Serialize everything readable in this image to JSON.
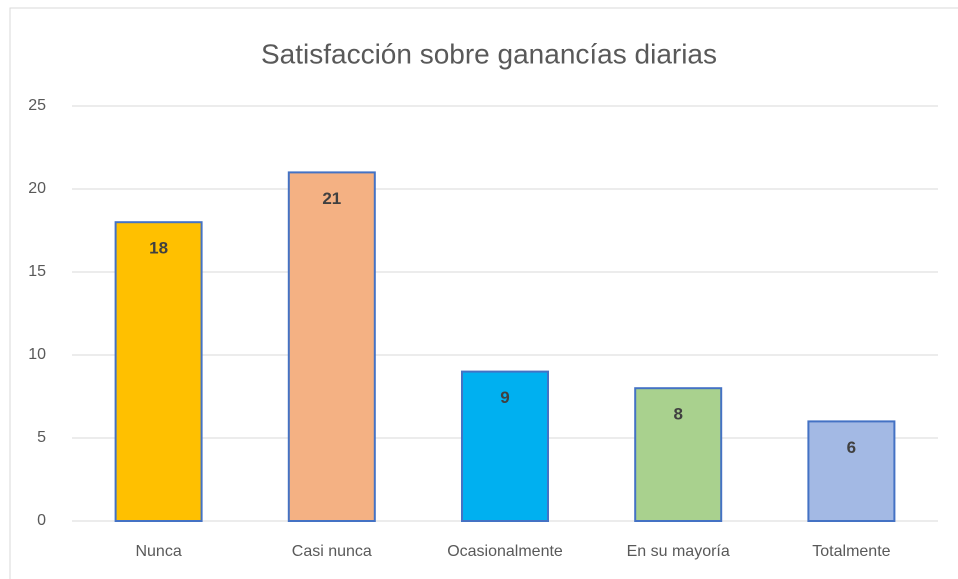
{
  "chart_data": {
    "type": "bar",
    "title": "Satisfacción sobre ganancías diarias",
    "categories": [
      "Nunca",
      "Casi nunca",
      "Ocasionalmente",
      "En su mayoría",
      "Totalmente"
    ],
    "values": [
      18,
      21,
      9,
      8,
      6
    ],
    "colors": [
      "#FFC000",
      "#F4B183",
      "#00B0F0",
      "#A9D18E",
      "#A3B9E4"
    ],
    "edge_color": "#4472C4",
    "ylim": [
      0,
      25
    ],
    "yticks": [
      0,
      5,
      10,
      15,
      20,
      25
    ],
    "grid": true
  }
}
